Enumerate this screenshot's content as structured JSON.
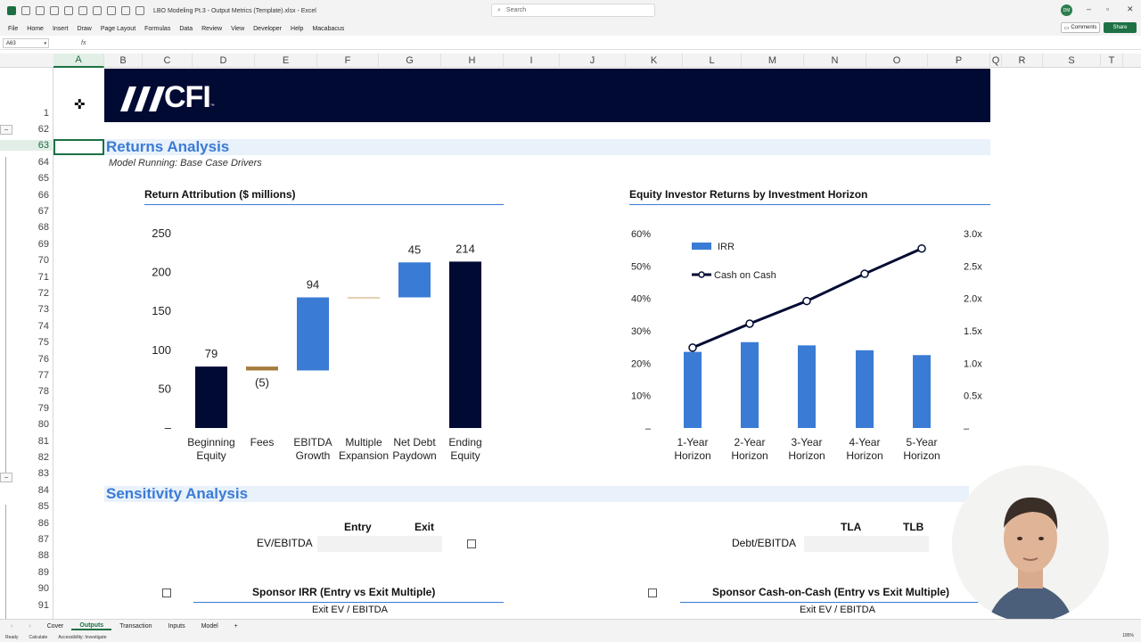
{
  "window": {
    "title": "LBO Modeling Pt.3 - Output Metrics (Template).xlsx - Excel",
    "search_placeholder": "Search",
    "avatar_initials": "DM"
  },
  "menu": [
    "File",
    "Home",
    "Insert",
    "Draw",
    "Page Layout",
    "Formulas",
    "Data",
    "Review",
    "View",
    "Developer",
    "Help",
    "Macabacus"
  ],
  "buttons": {
    "comments": "Comments",
    "share": "Share"
  },
  "formula_bar": {
    "name_box": "A63",
    "fx": "fx"
  },
  "columns": [
    "A",
    "B",
    "C",
    "D",
    "E",
    "F",
    "G",
    "H",
    "I",
    "J",
    "K",
    "L",
    "M",
    "N",
    "O",
    "P",
    "Q",
    "R",
    "S",
    "T"
  ],
  "rows": [
    "1",
    "62",
    "63",
    "64",
    "65",
    "66",
    "67",
    "68",
    "69",
    "70",
    "71",
    "72",
    "73",
    "74",
    "75",
    "76",
    "77",
    "78",
    "79",
    "80",
    "81",
    "82",
    "83",
    "84",
    "85",
    "86",
    "87",
    "88",
    "89",
    "90",
    "91"
  ],
  "banner": {
    "logo_text": "CFI",
    "trademark": "™"
  },
  "returns": {
    "title": "Returns Analysis",
    "subtitle": "Model Running: Base Case Drivers"
  },
  "chart_data": [
    {
      "type": "bar",
      "subtype": "waterfall",
      "title": "Return Attribution ($ millions)",
      "categories": [
        "Beginning Equity",
        "Fees",
        "EBITDA Growth",
        "Multiple Expansion",
        "Net Debt Paydown",
        "Ending Equity"
      ],
      "values": [
        79,
        -5,
        94,
        0,
        45,
        214
      ],
      "data_labels": [
        "79",
        "(5)",
        "94",
        "",
        "45",
        "214"
      ],
      "y_ticks": [
        "250",
        "200",
        "150",
        "100",
        "50",
        "–"
      ],
      "ylim": [
        0,
        250
      ],
      "colors": {
        "total": "#010a33",
        "increase": "#3a7bd5",
        "decrease": "#a67c3d",
        "zero": "#c9a36a"
      }
    },
    {
      "type": "bar",
      "subtype": "combo-bar-line",
      "title": "Equity Investor Returns by Investment Horizon",
      "categories": [
        "1-Year Horizon",
        "2-Year Horizon",
        "3-Year Horizon",
        "4-Year Horizon",
        "5-Year Horizon"
      ],
      "series": [
        {
          "name": "IRR",
          "type": "bar",
          "axis": "left",
          "values": [
            23.5,
            26.5,
            25.5,
            24.0,
            22.5
          ],
          "color": "#3a7bd5"
        },
        {
          "name": "Cash on Cash",
          "type": "line",
          "axis": "right",
          "values": [
            1.24,
            1.61,
            1.96,
            2.38,
            2.77
          ],
          "color": "#010a33"
        }
      ],
      "y_left_ticks": [
        "60%",
        "50%",
        "40%",
        "30%",
        "20%",
        "10%",
        "–"
      ],
      "y_right_ticks": [
        "3.0x",
        "2.5x",
        "2.0x",
        "1.5x",
        "1.0x",
        "0.5x",
        "–"
      ],
      "ylim_left": [
        0,
        60
      ],
      "ylim_right": [
        0,
        3.0
      ],
      "legend": "top-left"
    }
  ],
  "sensitivity": {
    "title": "Sensitivity Analysis",
    "entry_label": "Entry",
    "exit_label": "Exit",
    "ev_ebitda_label": "EV/EBITDA",
    "tla_label": "TLA",
    "tlb_label": "TLB",
    "debt_ebitda_label": "Debt/EBITDA",
    "irr_table_title": "Sponsor IRR (Entry vs Exit Multiple)",
    "coc_table_title": "Sponsor Cash-on-Cash (Entry vs Exit Multiple)",
    "exit_ev_label": "Exit EV / EBITDA"
  },
  "sheet_tabs": [
    "Cover",
    "Outputs",
    "Transaction",
    "Inputs",
    "Model"
  ],
  "active_tab": "Outputs",
  "status": {
    "ready": "Ready",
    "calculate": "Calculate",
    "accessibility": "Accessibility: Investigate",
    "zoom": "185%"
  }
}
